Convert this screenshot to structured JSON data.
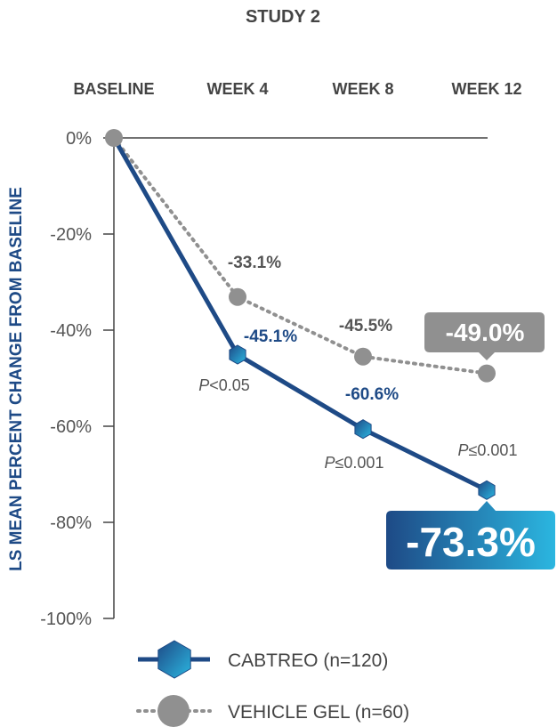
{
  "chart_data": {
    "type": "line",
    "title": "STUDY 2",
    "categories": [
      "BASELINE",
      "WEEK 4",
      "WEEK 8",
      "WEEK 12"
    ],
    "ylabel": "LS MEAN PERCENT CHANGE FROM BASELINE",
    "ylim": [
      -100,
      0
    ],
    "yticks": [
      0,
      -20,
      -40,
      -60,
      -80,
      -100
    ],
    "ytick_labels": [
      "0%",
      "-20%",
      "-40%",
      "-60%",
      "-80%",
      "-100%"
    ],
    "grid": false,
    "legend_position": "bottom-left",
    "series": [
      {
        "name": "CABTREO (n=120)",
        "values": [
          0,
          -45.1,
          -60.6,
          -73.3
        ],
        "labels": [
          "",
          "-45.1%",
          "-60.6%",
          "-73.3%"
        ],
        "color": "#1e4a86",
        "color_light": "#2bb6e0",
        "line_style": "solid",
        "marker": "hexagon"
      },
      {
        "name": "VEHICLE GEL (n=60)",
        "values": [
          0,
          -33.1,
          -45.5,
          -49.0
        ],
        "labels": [
          "",
          "-33.1%",
          "-45.5%",
          "-49.0%"
        ],
        "color": "#909090",
        "line_style": "dotted",
        "marker": "circle"
      }
    ],
    "p_values": [
      "",
      "<0.05",
      "≤0.001",
      "≤0.001"
    ],
    "p_prefix": "P"
  }
}
